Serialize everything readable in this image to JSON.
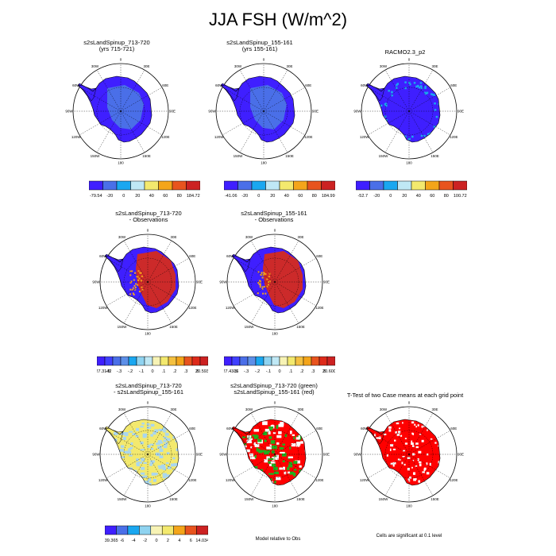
{
  "page": {
    "title": "JJA FSH (W/m^2)"
  },
  "lon_labels": [
    "0",
    "30E",
    "60E",
    "90E",
    "120E",
    "150E",
    "180",
    "150W",
    "120W",
    "90W",
    "60W",
    "30W"
  ],
  "panels": [
    {
      "id": "r1c1",
      "title1": "s2sLandSpinup_713-720",
      "title2": "(yrs 715-721)",
      "style": "blue"
    },
    {
      "id": "r1c2",
      "title1": "s2sLandSpinup_155-161",
      "title2": "(yrs 155-161)",
      "style": "blue"
    },
    {
      "id": "r1c3",
      "title1": "RACMO2.3_p2",
      "title2": "",
      "style": "blue-obs"
    },
    {
      "id": "r2c1",
      "title1": "s2sLandSpinup_713-720",
      "title2": "- Observations",
      "style": "red"
    },
    {
      "id": "r2c2",
      "title1": "s2sLandSpinup_155-161",
      "title2": "- Observations",
      "style": "red"
    },
    {
      "id": "r3c1",
      "title1": "s2sLandSpinup_713-720",
      "title2": "- s2sLandSpinup_155-161",
      "style": "yellow"
    },
    {
      "id": "r3c2",
      "title1": "s2sLandSpinup_713-720 (green)",
      "title2": "s2sLandSpinup_155-161 (red)",
      "style": "green-red"
    },
    {
      "id": "r3c3",
      "title1": "T-Test of two Case means at each grid point",
      "title2": "",
      "style": "ttest"
    }
  ],
  "colorbars": [
    {
      "id": "cb1",
      "colors": [
        "#3f1fff",
        "#4a6fe8",
        "#1aa7f0",
        "#bfe8f5",
        "#f3e96e",
        "#f4a51a",
        "#e8541e",
        "#cc2222"
      ],
      "labels": [
        "-79.54",
        "-20",
        "0",
        "20",
        "40",
        "60",
        "80",
        "184.72"
      ]
    },
    {
      "id": "cb2",
      "colors": [
        "#3f1fff",
        "#4a6fe8",
        "#1aa7f0",
        "#bfe8f5",
        "#f3e96e",
        "#f4a51a",
        "#e8541e",
        "#cc2222"
      ],
      "labels": [
        "-41.06",
        "-20",
        "0",
        "20",
        "40",
        "60",
        "80",
        "184.99"
      ]
    },
    {
      "id": "cb3",
      "colors": [
        "#3f1fff",
        "#4a6fe8",
        "#1aa7f0",
        "#bfe8f5",
        "#f3e96e",
        "#f4a51a",
        "#e8541e",
        "#cc2222"
      ],
      "labels": [
        "-52.7",
        "-20",
        "0",
        "20",
        "40",
        "60",
        "80",
        "100.72"
      ]
    },
    {
      "id": "cb4",
      "colors": [
        "#3f1fff",
        "#4040ff",
        "#4a6fe8",
        "#5d8fe8",
        "#1aa7f0",
        "#8fd3f0",
        "#bfe8f5",
        "#f7f3b5",
        "#f3e96e",
        "#f4c040",
        "#f4a51a",
        "#e8541e",
        "#dd2a1a",
        "#cc2222"
      ],
      "labels": [
        "-127.3142",
        "-.5",
        "-.3",
        "-.2",
        "-.1",
        "0",
        ".1",
        ".2",
        ".3",
        ".5",
        "20.5931"
      ]
    },
    {
      "id": "cb5",
      "colors": [
        "#3f1fff",
        "#4040ff",
        "#4a6fe8",
        "#5d8fe8",
        "#1aa7f0",
        "#8fd3f0",
        "#bfe8f5",
        "#f7f3b5",
        "#f3e96e",
        "#f4c040",
        "#f4a51a",
        "#e8541e",
        "#dd2a1a",
        "#cc2222"
      ],
      "labels": [
        "-127.4316",
        "-.5",
        "-.3",
        "-.2",
        "-.1",
        "0",
        ".1",
        ".2",
        ".3",
        ".5",
        "20.6009"
      ]
    },
    {
      "id": "cb6",
      "colors": [
        "#3f1fff",
        "#4a6fe8",
        "#1aa7f0",
        "#8fd3f0",
        "#f7f3b5",
        "#f3e96e",
        "#f4a51a",
        "#e8541e",
        "#cc2222"
      ],
      "labels": [
        "-39.365",
        "-6",
        "-4",
        "-2",
        "0",
        "2",
        "4",
        "6",
        "14.034"
      ]
    }
  ],
  "notes": {
    "model_relative": "Model relative to Obs",
    "significance": "Cells are significant at 0.1 level"
  },
  "colors": {
    "blue_fill": "#3f1fff",
    "blue_inner": "#4a6fe8",
    "red_fill": "#cc2a2a",
    "yellow_fill": "#f3e96e",
    "lightblue": "#a9d6ef",
    "green": "#1fb21f",
    "red": "#ff0000"
  }
}
